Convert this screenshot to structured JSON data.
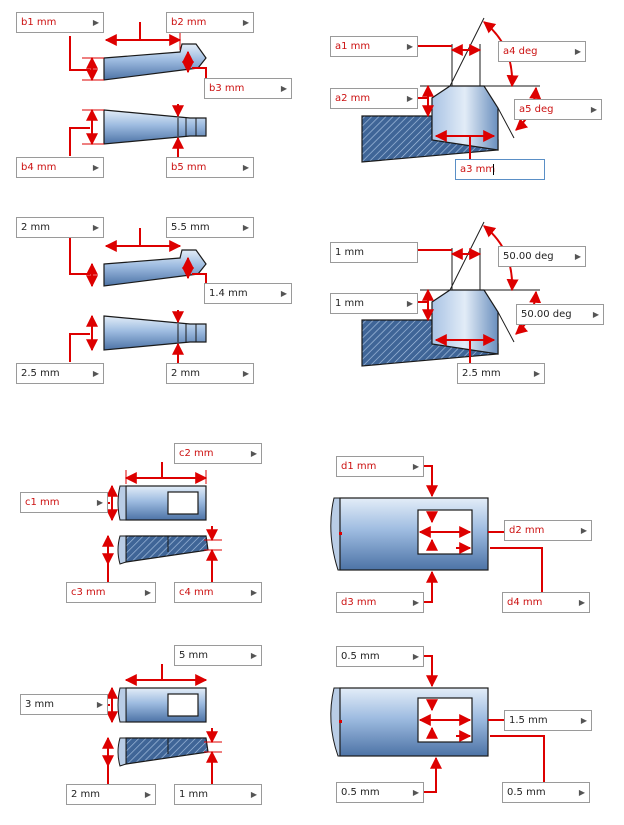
{
  "colors": {
    "dim": "#dd0000",
    "steel_dark": "#3a5a86",
    "steel_light": "#d6e4f4",
    "outline": "#1a1a1a"
  },
  "icons": {
    "field_arrow": "chevron-right-icon"
  },
  "fields": {
    "b1": {
      "label": "b1 mm",
      "value": "2 mm"
    },
    "b2": {
      "label": "b2 mm",
      "value": "5.5 mm"
    },
    "b3": {
      "label": "b3 mm",
      "value": "1.4 mm"
    },
    "b4": {
      "label": "b4 mm",
      "value": "2.5 mm"
    },
    "b5": {
      "label": "b5 mm",
      "value": "2 mm"
    },
    "a1": {
      "label": "a1 mm",
      "value": "1 mm"
    },
    "a2": {
      "label": "a2 mm",
      "value": "1 mm"
    },
    "a3": {
      "label": "a3 mm",
      "value": "2.5 mm"
    },
    "a4": {
      "label": "a4 deg",
      "value": "50.00 deg"
    },
    "a5": {
      "label": "a5 deg",
      "value": "50.00 deg"
    },
    "c1": {
      "label": "c1 mm",
      "value": "3 mm"
    },
    "c2": {
      "label": "c2 mm",
      "value": "5 mm"
    },
    "c3": {
      "label": "c3 mm",
      "value": "2 mm"
    },
    "c4": {
      "label": "c4 mm",
      "value": "1 mm"
    },
    "d1": {
      "label": "d1 mm",
      "value": "0.5 mm"
    },
    "d2": {
      "label": "d2 mm",
      "value": "1.5 mm"
    },
    "d3": {
      "label": "d3 mm",
      "value": "0.5 mm"
    },
    "d4": {
      "label": "d4 mm",
      "value": "0.5 mm"
    }
  }
}
